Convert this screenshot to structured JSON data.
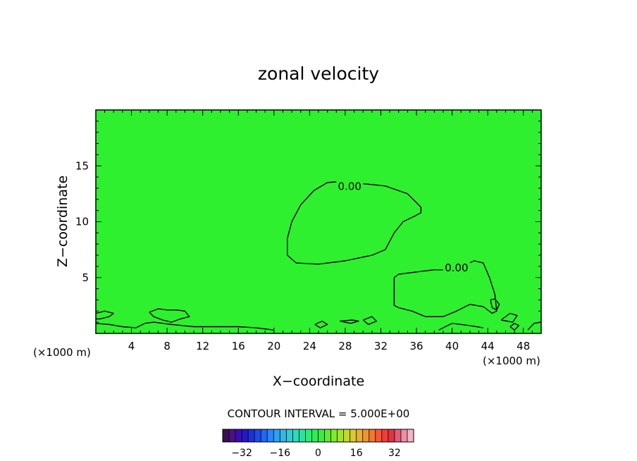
{
  "chart_data": {
    "type": "heatmap",
    "title": "zonal velocity",
    "xlabel": "X−coordinate",
    "ylabel": "Z−coordinate",
    "x_unit_left": "(×1000 m)",
    "x_unit_right": "(×1000 m)",
    "xlim": [
      0,
      50
    ],
    "ylim": [
      0,
      20
    ],
    "x_ticks": [
      4,
      8,
      12,
      16,
      20,
      24,
      28,
      32,
      36,
      40,
      44,
      48
    ],
    "y_ticks": [
      5,
      10,
      15
    ],
    "background_color": "#2ef02e",
    "contour_interval_text": "CONTOUR INTERVAL =  5.000E+00",
    "contour_level_labels": [
      "0.00",
      "0.00"
    ],
    "contour_lines": [
      {
        "level": 0,
        "label_pos": [
          28.5,
          13.1
        ],
        "points": [
          [
            21.5,
            8.5
          ],
          [
            22,
            10
          ],
          [
            23,
            11.5
          ],
          [
            24.5,
            12.8
          ],
          [
            26,
            13.5
          ],
          [
            27.5,
            13.6
          ],
          [
            30,
            13.4
          ],
          [
            32.5,
            13.2
          ],
          [
            35,
            12.5
          ],
          [
            36.5,
            11.3
          ],
          [
            36.5,
            10.8
          ],
          [
            35.8,
            10.5
          ],
          [
            34.5,
            10
          ],
          [
            33.5,
            9
          ],
          [
            32.5,
            7.5
          ],
          [
            31,
            7
          ],
          [
            28,
            6.5
          ],
          [
            25,
            6.2
          ],
          [
            22.5,
            6.3
          ],
          [
            21.5,
            7
          ],
          [
            21.5,
            8.5
          ]
        ]
      },
      {
        "level": 0,
        "label_pos": [
          40.5,
          5.8
        ],
        "points": [
          [
            33.5,
            5
          ],
          [
            34,
            5.3
          ],
          [
            36,
            5.5
          ],
          [
            38,
            5.7
          ],
          [
            39,
            5.7
          ],
          [
            41,
            6
          ],
          [
            42.5,
            6.5
          ],
          [
            43.5,
            6.3
          ],
          [
            44.2,
            5
          ],
          [
            44.8,
            3.5
          ],
          [
            45,
            2
          ],
          [
            44.5,
            1.8
          ],
          [
            43.5,
            2.4
          ],
          [
            42,
            2.6
          ],
          [
            40.5,
            2
          ],
          [
            39,
            1.5
          ],
          [
            37,
            1.5
          ],
          [
            35.5,
            2
          ],
          [
            34,
            2.3
          ],
          [
            33.5,
            2.5
          ],
          [
            33.5,
            5
          ]
        ]
      },
      {
        "level": 0,
        "label_pos": null,
        "points": [
          [
            44.3,
            3
          ],
          [
            44.8,
            3.1
          ],
          [
            45.3,
            2.6
          ],
          [
            45,
            2.1
          ],
          [
            44.5,
            2.3
          ],
          [
            44.3,
            3
          ]
        ]
      },
      {
        "level": 0,
        "label_pos": null,
        "points": [
          [
            0,
            1.8
          ],
          [
            1,
            2
          ],
          [
            2,
            1.8
          ],
          [
            1.5,
            1.5
          ],
          [
            0.5,
            1.3
          ],
          [
            0,
            1.3
          ]
        ]
      },
      {
        "level": 0,
        "label_pos": null,
        "points": [
          [
            6,
            1.9
          ],
          [
            7,
            2.2
          ],
          [
            8,
            2.1
          ],
          [
            9,
            2.1
          ],
          [
            10,
            2
          ],
          [
            10.5,
            1.5
          ],
          [
            9.5,
            1.3
          ],
          [
            8.5,
            1
          ],
          [
            7.5,
            1.2
          ],
          [
            6.5,
            1.5
          ],
          [
            6,
            1.9
          ]
        ]
      },
      {
        "level": 0,
        "label_pos": null,
        "points": [
          [
            0,
            0.9
          ],
          [
            1.5,
            0.8
          ],
          [
            3,
            0.6
          ],
          [
            4.5,
            0.5
          ],
          [
            5.5,
            0.9
          ],
          [
            6.5,
            1
          ],
          [
            8.5,
            0.8
          ],
          [
            11,
            0.6
          ],
          [
            13,
            0.6
          ],
          [
            16,
            0.6
          ],
          [
            18,
            0.5
          ],
          [
            20,
            0.3
          ]
        ]
      },
      {
        "level": 0,
        "label_pos": null,
        "points": [
          [
            24.6,
            0.8
          ],
          [
            25.4,
            1.1
          ],
          [
            26,
            0.8
          ],
          [
            25.2,
            0.5
          ],
          [
            24.6,
            0.8
          ]
        ]
      },
      {
        "level": 0,
        "label_pos": null,
        "points": [
          [
            27.4,
            1.1
          ],
          [
            28.8,
            1.2
          ],
          [
            29.5,
            1.1
          ],
          [
            28.6,
            0.9
          ],
          [
            27.4,
            1.1
          ]
        ]
      },
      {
        "level": 0,
        "label_pos": null,
        "points": [
          [
            30,
            1.2
          ],
          [
            31,
            1.5
          ],
          [
            31.5,
            1.1
          ],
          [
            30.6,
            0.8
          ],
          [
            30,
            1.2
          ]
        ]
      },
      {
        "level": 0,
        "label_pos": null,
        "points": [
          [
            38.5,
            0.3
          ],
          [
            40,
            0.9
          ],
          [
            42,
            0.7
          ],
          [
            43.5,
            0.5
          ]
        ]
      },
      {
        "level": 0,
        "label_pos": null,
        "points": [
          [
            45.5,
            1.2
          ],
          [
            46.5,
            1.8
          ],
          [
            47.3,
            1.6
          ],
          [
            46.8,
            1
          ],
          [
            45.5,
            1.2
          ]
        ]
      },
      {
        "level": 0,
        "label_pos": null,
        "points": [
          [
            48.5,
            0.3
          ],
          [
            49.2,
            0.9
          ],
          [
            50,
            1
          ]
        ]
      },
      {
        "level": 0,
        "label_pos": null,
        "points": [
          [
            46.5,
            0.6
          ],
          [
            47,
            0.9
          ],
          [
            47.5,
            0.7
          ],
          [
            47,
            0.3
          ],
          [
            46.5,
            0.6
          ]
        ]
      }
    ],
    "colorbar": {
      "ticks": [
        -32,
        -16,
        0,
        16,
        32
      ],
      "tick_labels": [
        "−32",
        "−16",
        "0",
        "16",
        "32"
      ],
      "min": -40,
      "max": 40,
      "colors": [
        "#3a0f55",
        "#4a1280",
        "#3a10aa",
        "#2418c8",
        "#1c2fdc",
        "#1f4ae8",
        "#2666ee",
        "#2d85f0",
        "#2fa0ef",
        "#30b8e8",
        "#30cbd6",
        "#2fd9bc",
        "#2ee29c",
        "#2ee87a",
        "#30ec56",
        "#3aee3a",
        "#5aee2e",
        "#7eea2c",
        "#a2e22c",
        "#c2d82c",
        "#dac82e",
        "#e8b030",
        "#ee9432",
        "#f27634",
        "#f25a36",
        "#ee4038",
        "#e83044",
        "#e45b78",
        "#ea8fa6",
        "#f0b8c4"
      ]
    }
  }
}
